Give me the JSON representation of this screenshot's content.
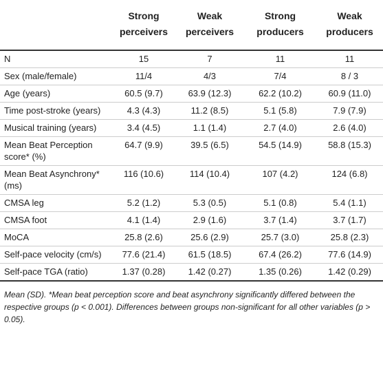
{
  "table": {
    "columns": [
      "Strong perceivers",
      "Weak perceivers",
      "Strong producers",
      "Weak producers"
    ],
    "rows": [
      [
        "N",
        "15",
        "7",
        "11",
        "11"
      ],
      [
        "Sex (male/female)",
        "11/4",
        "4/3",
        "7/4",
        "8 / 3"
      ],
      [
        "Age (years)",
        "60.5 (9.7)",
        "63.9 (12.3)",
        "62.2 (10.2)",
        "60.9 (11.0)"
      ],
      [
        "Time post-stroke (years)",
        "4.3 (4.3)",
        "11.2 (8.5)",
        "5.1 (5.8)",
        "7.9 (7.9)"
      ],
      [
        "Musical training (years)",
        "3.4 (4.5)",
        "1.1 (1.4)",
        "2.7 (4.0)",
        "2.6 (4.0)"
      ],
      [
        "Mean Beat Perception score* (%)",
        "64.7 (9.9)",
        "39.5 (6.5)",
        "54.5 (14.9)",
        "58.8 (15.3)"
      ],
      [
        "Mean Beat Asynchrony* (ms)",
        "116 (10.6)",
        "114 (10.4)",
        "107 (4.2)",
        "124 (6.8)"
      ],
      [
        "CMSA leg",
        "5.2 (1.2)",
        "5.3 (0.5)",
        "5.1 (0.8)",
        "5.4 (1.1)"
      ],
      [
        "CMSA foot",
        "4.1 (1.4)",
        "2.9 (1.6)",
        "3.7 (1.4)",
        "3.7 (1.7)"
      ],
      [
        "MoCA",
        "25.8 (2.6)",
        "25.6 (2.9)",
        "25.7 (3.0)",
        "25.8 (2.3)"
      ],
      [
        "Self-pace velocity (cm/s)",
        "77.6 (21.4)",
        "61.5 (18.5)",
        "67.4 (26.2)",
        "77.6 (14.9)"
      ],
      [
        "Self-pace TGA (ratio)",
        "1.37 (0.28)",
        "1.42 (0.27)",
        "1.35 (0.26)",
        "1.42 (0.29)"
      ]
    ]
  },
  "footnote": "Mean (SD). *Mean beat perception score and beat asynchrony significantly differed between the respective groups (p < 0.001). Differences between groups non-significant for all other variables (p > 0.05)."
}
